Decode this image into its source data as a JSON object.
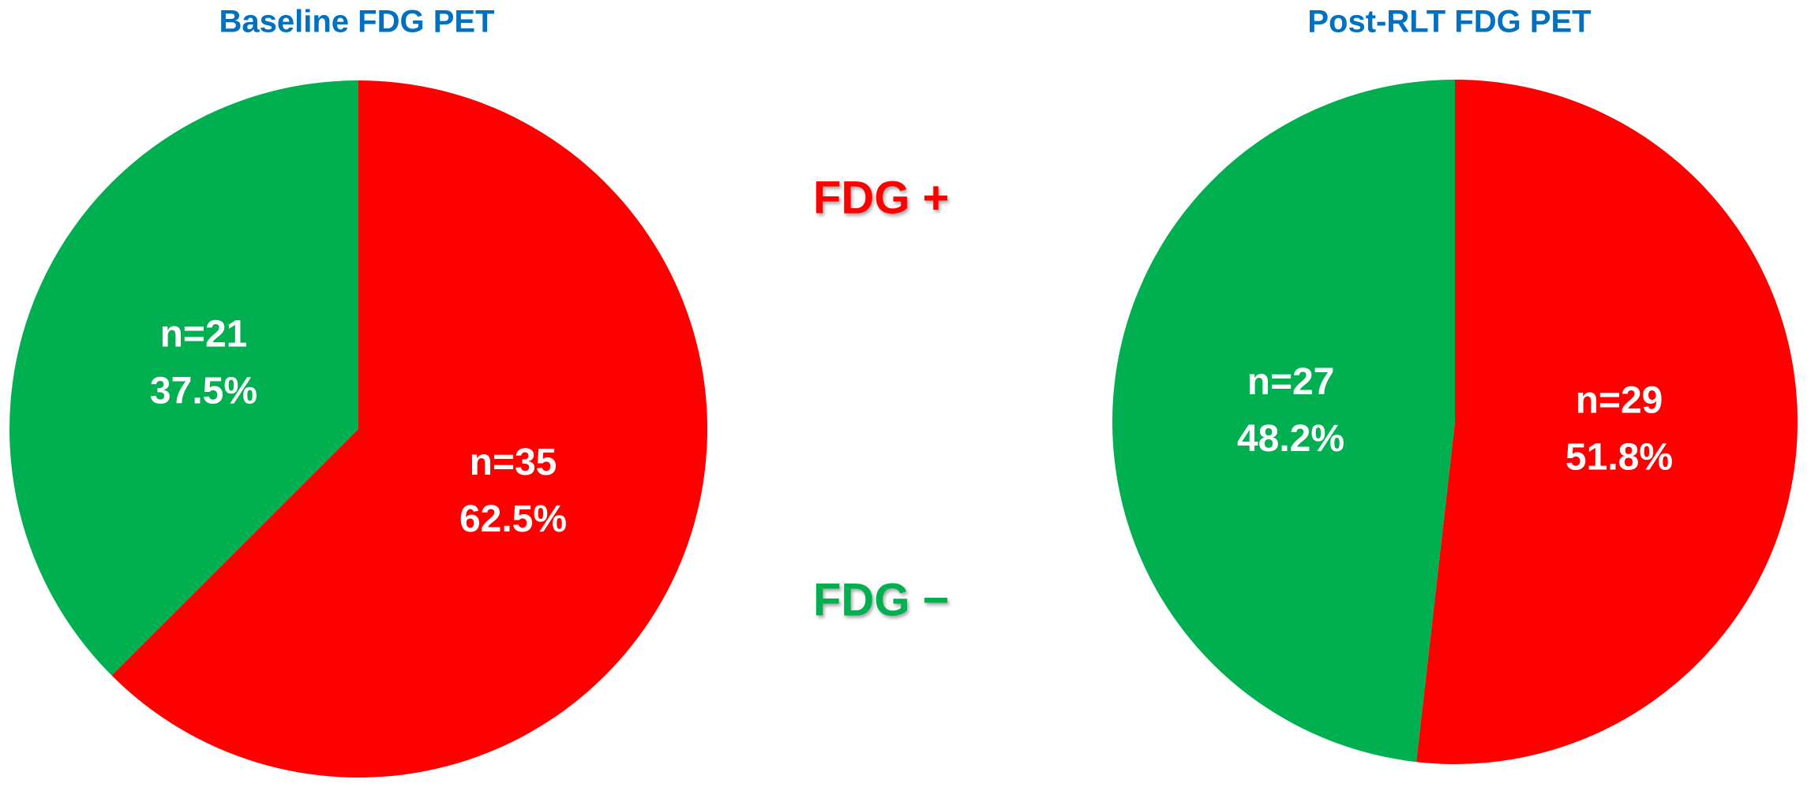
{
  "chart_data": [
    {
      "type": "pie",
      "title": "Baseline FDG PET",
      "categories": [
        "FDG +",
        "FDG −"
      ],
      "values": [
        62.5,
        37.5
      ],
      "value_labels": [
        "62.5%",
        "37.5%"
      ],
      "counts": [
        35,
        21
      ],
      "count_labels": [
        "n=35",
        "n=21"
      ],
      "colors": [
        "#ff0000",
        "#00b050"
      ]
    },
    {
      "type": "pie",
      "title": "Post-RLT FDG PET",
      "categories": [
        "FDG +",
        "FDG −"
      ],
      "values": [
        51.8,
        48.2
      ],
      "value_labels": [
        "51.8%",
        "48.2%"
      ],
      "counts": [
        29,
        27
      ],
      "count_labels": [
        "n=29",
        "n=27"
      ],
      "colors": [
        "#ff0000",
        "#00b050"
      ]
    }
  ]
}
